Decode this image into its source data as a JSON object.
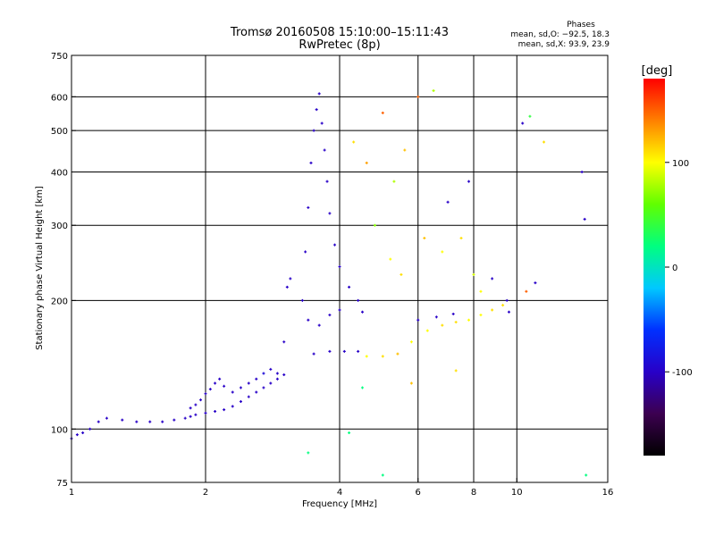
{
  "header": {
    "title_line1": "Tromsø 20160508 15:10:00–15:11:43",
    "title_line2": "RwPretec (8p)",
    "stats_title": "Phases",
    "stats_line1": "mean, sd,O: −92.5, 18.3",
    "stats_line2": "mean, sd,X:  93.9, 23.9"
  },
  "colorbar": {
    "label": "[deg]",
    "ticks": [
      {
        "value": 100,
        "label": "100"
      },
      {
        "value": 0,
        "label": "0"
      },
      {
        "value": -100,
        "label": "-100"
      }
    ],
    "vmin": -180,
    "vmax": 180,
    "colors": [
      "#000000",
      "#3c0050",
      "#2800c8",
      "#0030ff",
      "#00c8ff",
      "#00ff80",
      "#60ff00",
      "#ffff00",
      "#ff8000",
      "#ff0000"
    ]
  },
  "chart_data": {
    "type": "scatter",
    "title": "Tromsø 20160508 15:10:00–15:11:43",
    "subtitle": "RwPretec (8p)",
    "xlabel": "Frequency [MHz]",
    "ylabel": "Stationary phase Virtual Height [km]",
    "xscale": "log",
    "yscale": "log",
    "xlim": [
      1,
      16
    ],
    "ylim": [
      75,
      750
    ],
    "grid": true,
    "x_ticks": [
      {
        "value": 1,
        "label": "1"
      },
      {
        "value": 2,
        "label": "2"
      },
      {
        "value": 4,
        "label": "4"
      },
      {
        "value": 6,
        "label": "6"
      },
      {
        "value": 8,
        "label": "8"
      },
      {
        "value": 10,
        "label": "10"
      },
      {
        "value": 16,
        "label": "16"
      }
    ],
    "y_ticks": [
      {
        "value": 75,
        "label": "75"
      },
      {
        "value": 100,
        "label": "100"
      },
      {
        "value": 200,
        "label": "200"
      },
      {
        "value": 300,
        "label": "300"
      },
      {
        "value": 400,
        "label": "400"
      },
      {
        "value": 500,
        "label": "500"
      },
      {
        "value": 600,
        "label": "600"
      },
      {
        "value": 750,
        "label": "750"
      }
    ],
    "x_grid": [
      2,
      4,
      6,
      8,
      10
    ],
    "y_grid": [
      100,
      200,
      300,
      400,
      500,
      600
    ],
    "color_encoding": "phase_deg",
    "series": [
      {
        "trace": "o-trace-low",
        "points": [
          [
            1.0,
            95,
            -100
          ],
          [
            1.03,
            97,
            -100
          ],
          [
            1.06,
            98,
            -100
          ],
          [
            1.1,
            100,
            -100
          ],
          [
            1.15,
            104,
            -100
          ],
          [
            1.2,
            106,
            -100
          ],
          [
            1.3,
            105,
            -100
          ],
          [
            1.4,
            104,
            -100
          ],
          [
            1.5,
            104,
            -100
          ],
          [
            1.6,
            104,
            -100
          ],
          [
            1.7,
            105,
            -100
          ],
          [
            1.8,
            106,
            -100
          ],
          [
            1.85,
            107,
            -100
          ],
          [
            1.9,
            108,
            -100
          ],
          [
            2.0,
            109,
            -100
          ],
          [
            2.1,
            110,
            -100
          ],
          [
            2.2,
            111,
            -100
          ],
          [
            2.3,
            113,
            -100
          ],
          [
            2.4,
            116,
            -100
          ],
          [
            2.5,
            119,
            -100
          ],
          [
            2.6,
            122,
            -100
          ],
          [
            2.7,
            125,
            -100
          ],
          [
            2.8,
            128,
            -100
          ],
          [
            2.9,
            131,
            -100
          ],
          [
            3.0,
            134,
            -100
          ]
        ]
      },
      {
        "trace": "x-trace-low",
        "points": [
          [
            1.85,
            112,
            -100
          ],
          [
            1.9,
            114,
            -100
          ],
          [
            1.95,
            117,
            -100
          ],
          [
            2.0,
            121,
            -100
          ],
          [
            2.05,
            124,
            -100
          ],
          [
            2.1,
            128,
            -100
          ],
          [
            2.15,
            131,
            -100
          ],
          [
            2.2,
            126,
            -100
          ],
          [
            2.3,
            122,
            -100
          ],
          [
            2.4,
            125,
            -100
          ],
          [
            2.5,
            128,
            -100
          ],
          [
            2.6,
            131,
            -100
          ],
          [
            2.7,
            135,
            -90
          ],
          [
            2.8,
            138,
            -100
          ],
          [
            2.9,
            135,
            -100
          ],
          [
            3.0,
            160,
            -100
          ],
          [
            3.05,
            215,
            -100
          ],
          [
            3.1,
            225,
            -100
          ]
        ]
      },
      {
        "trace": "f-region-ocusp",
        "points": [
          [
            3.3,
            200,
            -100
          ],
          [
            3.35,
            260,
            -100
          ],
          [
            3.4,
            330,
            -100
          ],
          [
            3.45,
            420,
            -100
          ],
          [
            3.5,
            500,
            -100
          ],
          [
            3.55,
            560,
            -100
          ],
          [
            3.6,
            610,
            -100
          ],
          [
            3.65,
            520,
            -100
          ],
          [
            3.7,
            450,
            -100
          ],
          [
            3.75,
            380,
            -100
          ],
          [
            3.8,
            320,
            -100
          ],
          [
            3.9,
            270,
            -100
          ],
          [
            4.0,
            240,
            -100
          ],
          [
            4.2,
            215,
            -100
          ],
          [
            4.4,
            200,
            -100
          ],
          [
            3.4,
            180,
            -100
          ],
          [
            3.6,
            175,
            -100
          ],
          [
            3.8,
            185,
            -100
          ],
          [
            4.0,
            190,
            -100
          ],
          [
            4.5,
            188,
            -100
          ],
          [
            3.5,
            150,
            -100
          ],
          [
            3.8,
            152,
            -100
          ],
          [
            4.1,
            152,
            -100
          ],
          [
            4.4,
            152,
            -100
          ]
        ]
      },
      {
        "trace": "scatter-high",
        "points": [
          [
            4.3,
            470,
            110
          ],
          [
            4.6,
            420,
            130
          ],
          [
            5.0,
            550,
            150
          ],
          [
            5.3,
            380,
            80
          ],
          [
            5.6,
            450,
            120
          ],
          [
            6.0,
            600,
            150
          ],
          [
            4.8,
            300,
            70
          ],
          [
            5.2,
            250,
            100
          ],
          [
            5.5,
            230,
            110
          ],
          [
            6.2,
            280,
            120
          ],
          [
            6.8,
            260,
            100
          ],
          [
            7.5,
            280,
            110
          ],
          [
            8.0,
            230,
            90
          ],
          [
            8.3,
            210,
            100
          ],
          [
            8.8,
            225,
            -100
          ],
          [
            9.5,
            200,
            -100
          ],
          [
            10.5,
            210,
            150
          ],
          [
            11.0,
            220,
            -100
          ],
          [
            7.0,
            340,
            -100
          ],
          [
            7.8,
            380,
            -100
          ],
          [
            10.3,
            520,
            -100
          ],
          [
            11.5,
            470,
            110
          ],
          [
            14.0,
            400,
            -100
          ],
          [
            14.2,
            310,
            -100
          ]
        ]
      },
      {
        "trace": "x-trace-f",
        "points": [
          [
            4.6,
            148,
            100
          ],
          [
            5.0,
            148,
            110
          ],
          [
            5.4,
            150,
            120
          ],
          [
            5.8,
            160,
            100
          ],
          [
            6.3,
            170,
            100
          ],
          [
            6.8,
            175,
            110
          ],
          [
            7.3,
            178,
            110
          ],
          [
            7.8,
            180,
            100
          ],
          [
            8.3,
            185,
            100
          ],
          [
            8.8,
            190,
            110
          ],
          [
            9.3,
            195,
            110
          ],
          [
            6.0,
            180,
            -100
          ],
          [
            6.6,
            183,
            -100
          ],
          [
            7.2,
            186,
            -100
          ],
          [
            9.6,
            188,
            -100
          ]
        ]
      },
      {
        "trace": "outliers",
        "points": [
          [
            3.4,
            88,
            20
          ],
          [
            4.2,
            98,
            20
          ],
          [
            5.0,
            78,
            20
          ],
          [
            7.3,
            137,
            110
          ],
          [
            14.3,
            78,
            20
          ],
          [
            4.5,
            125,
            20
          ],
          [
            5.8,
            128,
            120
          ],
          [
            6.5,
            620,
            80
          ],
          [
            10.7,
            540,
            40
          ]
        ]
      }
    ]
  }
}
